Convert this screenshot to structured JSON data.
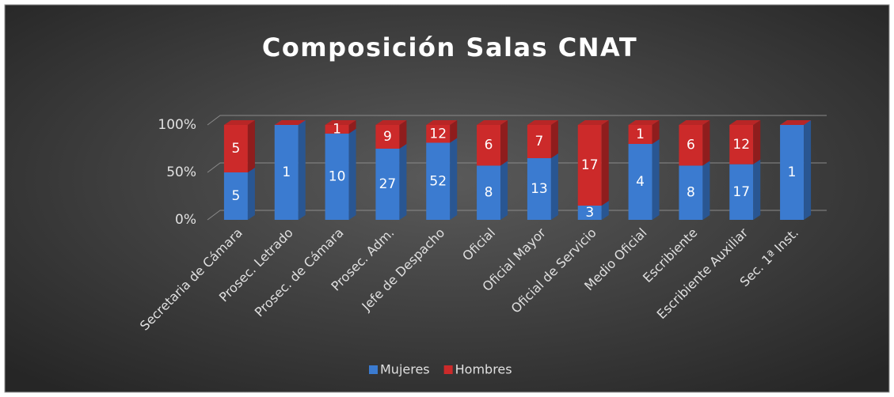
{
  "chart_data": {
    "type": "bar100",
    "title": "Composición Salas CNAT",
    "categories": [
      "Secretaria de Cámara",
      "Prosec. Letrado",
      "Prosec. de Cámara",
      "Prosec. Adm.",
      "Jefe de Despacho",
      "Oficial",
      "Oficial Mayor",
      "Oficial de Servicio",
      "Medio Oficial",
      "Escribiente",
      "Escribiente Auxiliar",
      "Sec. 1ª Inst."
    ],
    "series": [
      {
        "name": "Mujeres",
        "color": "#3b7bd0",
        "values": [
          5,
          1,
          10,
          27,
          52,
          8,
          13,
          3,
          4,
          8,
          17,
          1
        ]
      },
      {
        "name": "Hombres",
        "color": "#cc2a2a",
        "values": [
          5,
          0,
          1,
          9,
          12,
          6,
          7,
          17,
          1,
          6,
          12,
          0
        ]
      }
    ],
    "ylim": [
      0,
      100
    ],
    "yticks": [
      {
        "value": 0,
        "label": "0%"
      },
      {
        "value": 50,
        "label": "50%"
      },
      {
        "value": 100,
        "label": "100%"
      }
    ],
    "grid": true,
    "legend": "bottom"
  }
}
